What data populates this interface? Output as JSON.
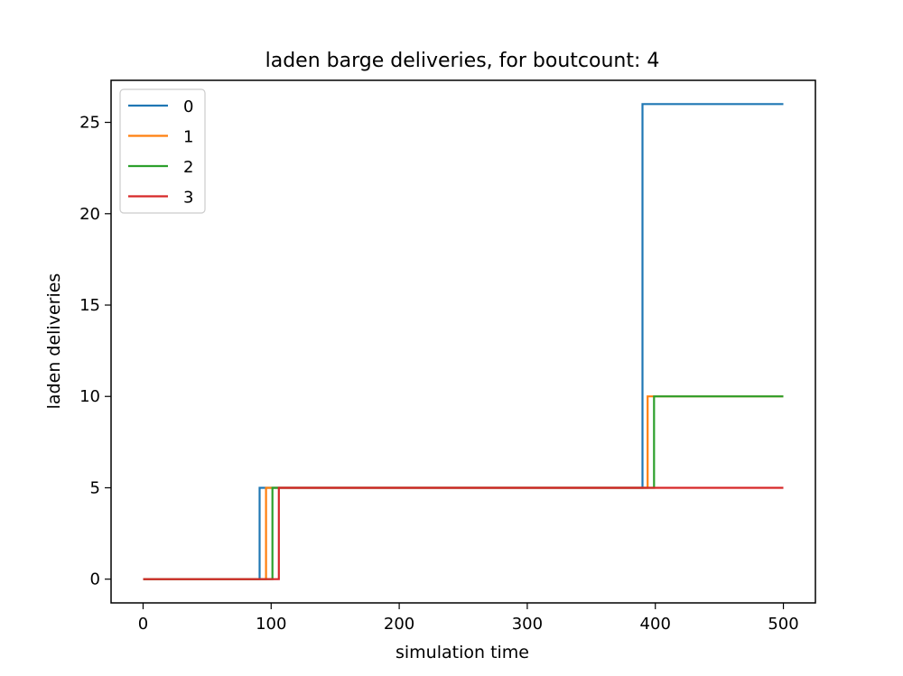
{
  "chart_data": {
    "type": "line",
    "title": "laden barge deliveries, for boutcount: 4",
    "xlabel": "simulation time",
    "ylabel": "laden deliveries",
    "xlim": [
      -25,
      525
    ],
    "ylim": [
      -1.3,
      27.3
    ],
    "x_ticks": [
      0,
      100,
      200,
      300,
      400,
      500
    ],
    "y_ticks": [
      0,
      5,
      10,
      15,
      20,
      25
    ],
    "x_tick_labels": [
      "0",
      "100",
      "200",
      "300",
      "400",
      "500"
    ],
    "y_tick_labels": [
      "0",
      "5",
      "10",
      "15",
      "20",
      "25"
    ],
    "grid": false,
    "legend_position": "top-left",
    "series": [
      {
        "name": "0",
        "color": "#1f77b4",
        "x": [
          0,
          91,
          91,
          390,
          390,
          500
        ],
        "y": [
          0,
          0,
          5,
          5,
          26,
          26
        ]
      },
      {
        "name": "1",
        "color": "#ff7f0e",
        "x": [
          0,
          96,
          96,
          394,
          394,
          500
        ],
        "y": [
          0,
          0,
          5,
          5,
          10,
          10
        ]
      },
      {
        "name": "2",
        "color": "#2ca02c",
        "x": [
          0,
          101,
          101,
          399,
          399,
          500
        ],
        "y": [
          0,
          0,
          5,
          5,
          10,
          10
        ]
      },
      {
        "name": "3",
        "color": "#d62728",
        "x": [
          0,
          106,
          106,
          500
        ],
        "y": [
          0,
          0,
          5,
          5
        ]
      }
    ]
  }
}
